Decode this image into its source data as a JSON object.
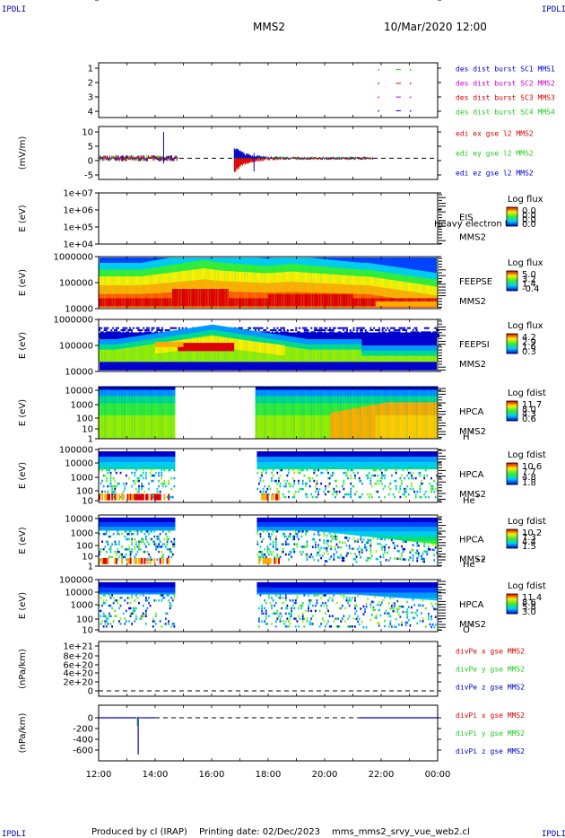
{
  "header": {
    "corner_label": "IPDLI",
    "spacecraft": "MMS2",
    "date_time": "10/Mar/2020 12:00"
  },
  "footer": {
    "produced_by": "Produced by cl (IRAP)",
    "printing_date": "Printing date: 02/Dec/2023",
    "script_name": "mms_mms2_srvy_vue_web2.cl"
  },
  "colors": {
    "red": "#dd0000",
    "green": "#22cc22",
    "blue": "#0000cc",
    "magenta": "#cc00cc"
  },
  "chart_data": [
    {
      "type": "line",
      "name": "des-burst",
      "ylim": [
        0.5,
        4.5
      ],
      "yticks": [
        "1",
        "2",
        "3",
        "4"
      ],
      "legend": [
        {
          "label": "des dist burst SC1 MMS1",
          "color": "#0000cc"
        },
        {
          "label": "des dist burst SC2 MMS2",
          "color": "#cc00cc"
        },
        {
          "label": "des dist burst SC3 MMS3",
          "color": "#dd0000"
        },
        {
          "label": "des dist burst SC4 MMS4",
          "color": "#22cc22"
        }
      ],
      "series": [
        {
          "y": 4,
          "color": "#22cc22",
          "segments": [
            [
              21.95,
              22.95
            ]
          ]
        },
        {
          "y": 3,
          "color": "#dd0000",
          "segments": [
            [
              21.95,
              22.95
            ]
          ]
        },
        {
          "y": 2,
          "color": "#cc00cc",
          "segments": [
            [
              21.95,
              22.95
            ]
          ]
        },
        {
          "y": 1,
          "color": "#0000cc",
          "segments": [
            [
              21.95,
              22.95
            ]
          ]
        }
      ]
    },
    {
      "type": "line",
      "name": "edi-e-field",
      "ylabel": "(mV/m)",
      "ylim": [
        -8,
        12
      ],
      "yticks": [
        "10",
        "5",
        "0",
        "-5"
      ],
      "legend": [
        {
          "label": "edi ex gse l2 MMS2",
          "color": "#dd0000"
        },
        {
          "label": "edi ey gse l2 MMS2",
          "color": "#22cc22"
        },
        {
          "label": "edi ez gse l2 MMS2",
          "color": "#0000cc"
        }
      ]
    },
    {
      "type": "heatmap",
      "name": "eis",
      "ylabel": "E (eV)",
      "yticks": [
        "1e+07",
        "1e+06",
        "1e+05",
        "1e+04"
      ],
      "instrument": "EIS",
      "extra": "Heavy electron to",
      "sc": "MMS2",
      "colorbar_title": "Log flux",
      "colorbar_ticks": [
        "0.0",
        "0.0",
        "0.0",
        "0.0"
      ]
    },
    {
      "type": "heatmap",
      "name": "feeps-e",
      "ylabel": "E (eV)",
      "yticks": [
        "1000000",
        "100000",
        "10000"
      ],
      "instrument": "FEEPSE",
      "sc": "MMS2",
      "colorbar_title": "Log flux",
      "colorbar_ticks": [
        "5.0",
        "3.2",
        "1.4",
        "-0.4"
      ]
    },
    {
      "type": "heatmap",
      "name": "feeps-i",
      "ylabel": "E (eV)",
      "yticks": [
        "1000000",
        "100000",
        "10000"
      ],
      "instrument": "FEEPSI",
      "sc": "MMS2",
      "colorbar_title": "Log flux",
      "colorbar_ticks": [
        "4.2",
        "2.9",
        "1.6",
        "0.3"
      ]
    },
    {
      "type": "heatmap",
      "name": "hpca-h",
      "ylabel": "E (eV)",
      "yticks": [
        "10000",
        "1000",
        "100",
        "10",
        "1"
      ],
      "instrument": "HPCA",
      "sc": "MMS2",
      "species": "H",
      "charge": "+",
      "colorbar_title": "Log fdist",
      "colorbar_ticks": [
        "11.7",
        "8.0",
        "4.3",
        "0.6"
      ]
    },
    {
      "type": "heatmap",
      "name": "hpca-he",
      "ylabel": "E (eV)",
      "yticks": [
        "100000",
        "10000",
        "1000",
        "100",
        "10",
        "1"
      ],
      "instrument": "HPCA",
      "sc": "MMS2",
      "species": "He",
      "charge": "+",
      "colorbar_title": "Log fdist",
      "colorbar_ticks": [
        "10.6",
        "7.7",
        "4.8",
        "1.8"
      ]
    },
    {
      "type": "heatmap",
      "name": "hpca-he2",
      "ylabel": "E (eV)",
      "yticks": [
        "10000",
        "1000",
        "100",
        "10",
        "1"
      ],
      "instrument": "HPCA",
      "sc": "MMS2",
      "species": "He",
      "charge": "++",
      "colorbar_title": "Log fdist",
      "colorbar_ticks": [
        "10.2",
        "7.3",
        "4.4",
        "1.5"
      ]
    },
    {
      "type": "heatmap",
      "name": "hpca-o",
      "ylabel": "E (eV)",
      "yticks": [
        "100000",
        "10000",
        "1000",
        "100",
        "10",
        "1"
      ],
      "instrument": "HPCA",
      "sc": "MMS2",
      "species": "O",
      "charge": "+",
      "colorbar_title": "Log fdist",
      "colorbar_ticks": [
        "11.4",
        "8.6",
        "5.8",
        "3.0"
      ]
    },
    {
      "type": "line",
      "name": "divpe",
      "ylabel": "(nPa/km)",
      "ylim": [
        -3e+20,
        1.05e+21
      ],
      "yticks": [
        "1e+21",
        "8e+20",
        "6e+20",
        "4e+20",
        "2e+20",
        "0"
      ],
      "legend": [
        {
          "label": "divPe x gse MMS2",
          "color": "#dd0000"
        },
        {
          "label": "divPe y gse MMS2",
          "color": "#22cc22"
        },
        {
          "label": "divPe z gse MMS2",
          "color": "#0000cc"
        }
      ]
    },
    {
      "type": "line",
      "name": "divpi",
      "ylabel": "(nPa/km)",
      "ylim": [
        -750,
        80
      ],
      "yticks": [
        "0",
        "-200",
        "-400",
        "-600"
      ],
      "legend": [
        {
          "label": "divPi x gse MMS2",
          "color": "#dd0000"
        },
        {
          "label": "divPi y gse MMS2",
          "color": "#22cc22"
        },
        {
          "label": "divPi z gse MMS2",
          "color": "#0000cc"
        }
      ],
      "spike": {
        "x": 13.4,
        "y": -680
      },
      "segments": [
        [
          12.0,
          13.35,
          0
        ],
        [
          13.5,
          14.0,
          0
        ],
        [
          21.25,
          24.0,
          0
        ]
      ]
    }
  ],
  "xaxis": {
    "range": [
      12,
      24
    ],
    "ticks": [
      {
        "x": 12,
        "label": "12:00"
      },
      {
        "x": 14,
        "label": "14:00"
      },
      {
        "x": 16,
        "label": "16:00"
      },
      {
        "x": 18,
        "label": "18:00"
      },
      {
        "x": 20,
        "label": "20:00"
      },
      {
        "x": 22,
        "label": "22:00"
      },
      {
        "x": 24,
        "label": "00:00"
      }
    ]
  }
}
